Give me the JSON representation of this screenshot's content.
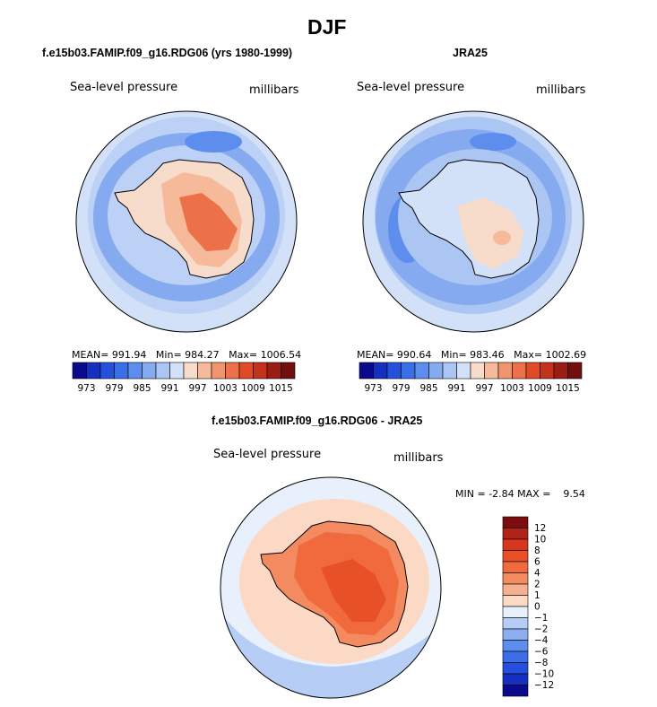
{
  "figure_title": "DJF",
  "chart_data": [
    {
      "type": "heatmap",
      "title": "f.e15b03.FAMIP.f09_g16.RDG06 (yrs 1980-1999)",
      "variable_label": "Sea-level pressure",
      "units_label": "millibars",
      "stats": {
        "mean_label": "MEAN=",
        "mean": "991.94",
        "min_label": "Min=",
        "min": "984.27",
        "max_label": "Max=",
        "max": "1006.54"
      },
      "colorbar": {
        "tick_labels": [
          "973",
          "979",
          "985",
          "991",
          "997",
          "1003",
          "1009",
          "1015"
        ],
        "colors": [
          "#0a0a8c",
          "#1530c0",
          "#2450dd",
          "#3b6fe8",
          "#5d8ded",
          "#85aaf0",
          "#acc6f4",
          "#d2e1f8",
          "#f8dccb",
          "#f6b99a",
          "#f09570",
          "#ec7048",
          "#e04a26",
          "#c4321a",
          "#9a1d14",
          "#70100e"
        ]
      },
      "field": {
        "ocean": "#bcd1f5",
        "ring_low": "#85aaf0",
        "ring_deep": "#5d8ded",
        "outer": "#d2e1f8",
        "warm_outer": "#f8dccb",
        "land": "#f6b99a",
        "land_core": "#f09570",
        "land_peak": "#ec7048"
      }
    },
    {
      "type": "heatmap",
      "title": "JRA25",
      "variable_label": "Sea-level pressure",
      "units_label": "millibars",
      "stats": {
        "mean_label": "MEAN=",
        "mean": "990.64",
        "min_label": "Min=",
        "min": "983.46",
        "max_label": "Max=",
        "max": "1002.69"
      },
      "colorbar": {
        "tick_labels": [
          "973",
          "979",
          "985",
          "991",
          "997",
          "1003",
          "1009",
          "1015"
        ],
        "colors": [
          "#0a0a8c",
          "#1530c0",
          "#2450dd",
          "#3b6fe8",
          "#5d8ded",
          "#85aaf0",
          "#acc6f4",
          "#d2e1f8",
          "#f8dccb",
          "#f6b99a",
          "#f09570",
          "#ec7048",
          "#e04a26",
          "#c4321a",
          "#9a1d14",
          "#70100e"
        ]
      },
      "field": {
        "ocean": "#acc6f4",
        "ring_low": "#85aaf0",
        "ring_deep": "#5d8ded",
        "outer": "#d2e1f8",
        "warm_outer": "#f8dccb",
        "land": "#d2e1f8",
        "land_core": "#f8dccb",
        "land_peak": "#f6b99a"
      }
    },
    {
      "type": "heatmap",
      "title": "f.e15b03.FAMIP.f09_g16.RDG06 - JRA25",
      "variable_label": "Sea-level pressure",
      "units_label": "millibars",
      "stats": {
        "min_label": "MIN =",
        "min": "-2.84",
        "max_label": "MAX =",
        "max": "9.54"
      },
      "colorbar": {
        "tick_labels": [
          "12",
          "10",
          "8",
          "6",
          "4",
          "2",
          "1",
          "0",
          "−1",
          "−2",
          "−4",
          "−6",
          "−8",
          "−10",
          "−12"
        ],
        "colors": [
          "#7a0e0e",
          "#b02418",
          "#d8361c",
          "#e85028",
          "#f06a3e",
          "#f38a60",
          "#f6b090",
          "#fbd9c4",
          "#e8f0fb",
          "#b6cdf5",
          "#8aaef0",
          "#5d8ded",
          "#3b6fe8",
          "#2450dd",
          "#1530c0",
          "#0a0a8c"
        ]
      },
      "field": {
        "ocean": "#e8f0fb",
        "outer_blue": "#b6cdf5",
        "warm_outer": "#fbd9c4",
        "land": "#f38a60",
        "land_core": "#f06a3e",
        "land_peak": "#e85028"
      }
    }
  ]
}
